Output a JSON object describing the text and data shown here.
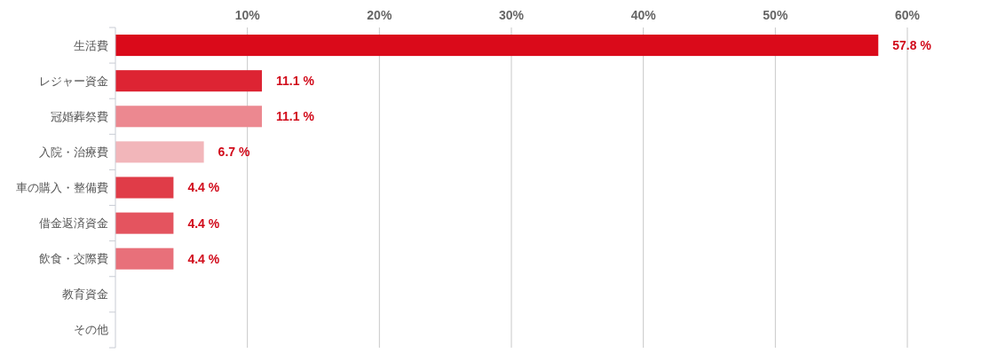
{
  "chart_data": {
    "type": "bar",
    "orientation": "horizontal",
    "categories": [
      "生活費",
      "レジャー資金",
      "冠婚葬祭費",
      "入院・治療費",
      "車の購入・整備費",
      "借金返済資金",
      "飲食・交際費",
      "教育資金",
      "その他"
    ],
    "values": [
      57.8,
      11.1,
      11.1,
      6.7,
      4.4,
      4.4,
      4.4,
      null,
      null
    ],
    "colors": [
      "#da0a1a",
      "#dd2433",
      "#ec8890",
      "#f2b6ba",
      "#e03c48",
      "#e4545f",
      "#e8707a",
      null,
      null
    ],
    "value_labels": [
      "57.8 %",
      "11.1 %",
      "11.1 %",
      "6.7 %",
      "4.4 %",
      "4.4 %",
      "4.4 %",
      null,
      null
    ],
    "xlim": [
      0,
      60
    ],
    "xticks": [
      {
        "value": 0,
        "label": null
      },
      {
        "value": 10,
        "label": "10%"
      },
      {
        "value": 20,
        "label": "20%"
      },
      {
        "value": 30,
        "label": "30%"
      },
      {
        "value": 40,
        "label": "40%"
      },
      {
        "value": 50,
        "label": "50%"
      },
      {
        "value": 60,
        "label": "60%"
      }
    ],
    "grid": "x"
  }
}
